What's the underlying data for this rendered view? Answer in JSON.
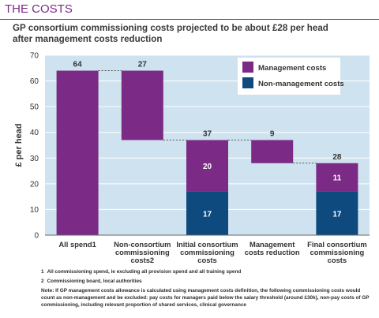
{
  "section_title": "THE COSTS",
  "chart_title_line1": "GP consortium commissioning costs projected to be about £28 per head",
  "chart_title_line2": "after management costs reduction",
  "colors": {
    "management": "#7b2a85",
    "non_management": "#0e4a7e",
    "background": "#cfe2ef",
    "brand": "#7b2a85"
  },
  "chart_data": {
    "type": "bar",
    "subtype": "waterfall",
    "ylabel": "£ per head",
    "ylim": [
      0,
      70
    ],
    "yticks": [
      0,
      10,
      20,
      30,
      40,
      50,
      60,
      70
    ],
    "grid": true,
    "legend_position": "top-right",
    "legend": [
      {
        "label": "Management costs",
        "color": "#7b2a85"
      },
      {
        "label": "Non-management costs",
        "color": "#0e4a7e"
      }
    ],
    "categories": [
      [
        "All spend1"
      ],
      [
        "Non-consortium",
        "commissioning",
        "costs2"
      ],
      [
        "Initial consortium",
        "commissioning",
        "costs"
      ],
      [
        "Management",
        "costs reduction"
      ],
      [
        "Final consortium",
        "commissioning",
        "costs"
      ]
    ],
    "bars": [
      {
        "segments": [
          {
            "from": 0,
            "to": 64,
            "kind": "management"
          }
        ],
        "total_label": "64"
      },
      {
        "segments": [
          {
            "from": 37,
            "to": 64,
            "kind": "management"
          }
        ],
        "total_label": "27"
      },
      {
        "segments": [
          {
            "from": 0,
            "to": 17,
            "kind": "non_management",
            "label": "17"
          },
          {
            "from": 17,
            "to": 37,
            "kind": "management",
            "label": "20"
          }
        ],
        "total_label": "37"
      },
      {
        "segments": [
          {
            "from": 28,
            "to": 37,
            "kind": "management"
          }
        ],
        "total_label": "9"
      },
      {
        "segments": [
          {
            "from": 0,
            "to": 17,
            "kind": "non_management",
            "label": "17"
          },
          {
            "from": 17,
            "to": 28,
            "kind": "management",
            "label": "11"
          }
        ],
        "total_label": "28"
      }
    ],
    "connectors": [
      {
        "from_bar": 0,
        "to_bar": 1,
        "y": 64
      },
      {
        "from_bar": 1,
        "to_bar": 2,
        "y": 37
      },
      {
        "from_bar": 2,
        "to_bar": 3,
        "y": 37
      },
      {
        "from_bar": 3,
        "to_bar": 4,
        "y": 28
      }
    ]
  },
  "footnotes": [
    {
      "num": "1",
      "text": "All commissioning spend, ie excluding all provision spend and all training spend"
    },
    {
      "num": "2",
      "text": "Commissioning board, local authorities"
    }
  ],
  "note": "Note: If GP management costs allowance is calculated using management costs definition, the following commissioning costs would count as non-management and be excluded: pay costs for managers paid below the salary threshold (around £30k), non-pay costs of GP commissioning, including relevant proportion of shared services, clinical governance"
}
